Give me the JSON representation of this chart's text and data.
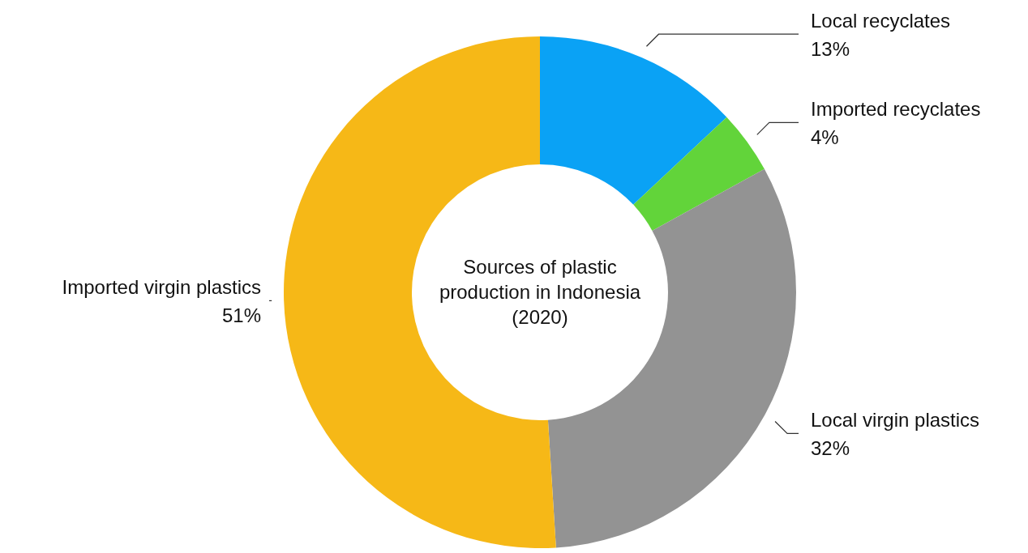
{
  "chart_data": {
    "type": "donut",
    "title": "Sources of plastic production in Indonesia (2020)",
    "categories": [
      "Local recyclates",
      "Imported recyclates",
      "Local virgin plastics",
      "Imported virgin plastics"
    ],
    "values": [
      13,
      4,
      32,
      51
    ],
    "value_labels": [
      "13%",
      "4%",
      "32%",
      "51%"
    ],
    "colors": [
      "#0aa2f5",
      "#62d43a",
      "#939393",
      "#f6b817"
    ]
  }
}
